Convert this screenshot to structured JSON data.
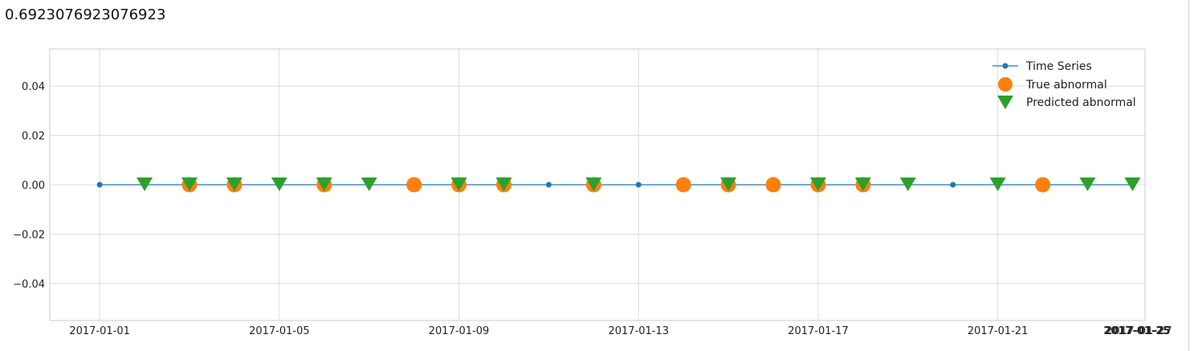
{
  "output_text": "0.6923076923076923",
  "chart_data": {
    "type": "scatter",
    "title": "",
    "xlabel": "",
    "ylabel": "",
    "x_ticks": [
      "2017-01-01",
      "2017-01-05",
      "2017-01-09",
      "2017-01-13",
      "2017-01-17",
      "2017-01-21"
    ],
    "y_ticks": [
      "0.04",
      "0.02",
      "0.00",
      "−0.02",
      "−0.04"
    ],
    "ylim": [
      -0.055,
      0.055
    ],
    "xlim": [
      "2016-12-30T21:20",
      "2017-01-24T06:40"
    ],
    "grid": true,
    "legend_position": "top-right",
    "legend": [
      "Time Series",
      "True abnormal",
      "Predicted abnormal"
    ],
    "series": [
      {
        "name": "Time Series",
        "style": "line-dot",
        "color": "#1f77b4",
        "x": [
          "2017-01-01",
          "2017-01-02",
          "2017-01-03",
          "2017-01-04",
          "2017-01-05",
          "2017-01-06",
          "2017-01-07",
          "2017-01-08",
          "2017-01-09",
          "2017-01-10",
          "2017-01-11",
          "2017-01-12",
          "2017-01-13",
          "2017-01-14",
          "2017-01-15",
          "2017-01-16",
          "2017-01-17",
          "2017-01-18",
          "2017-01-19",
          "2017-01-20",
          "2017-01-21",
          "2017-01-22",
          "2017-01-23",
          "2017-01-24"
        ],
        "y": [
          0,
          0,
          0,
          0,
          0,
          0,
          0,
          0,
          0,
          0,
          0,
          0,
          0,
          0,
          0,
          0,
          0,
          0,
          0,
          0,
          0,
          0,
          0,
          0
        ]
      },
      {
        "name": "True abnormal",
        "style": "circle",
        "color": "#ff7f0e",
        "x": [
          "2017-01-03",
          "2017-01-04",
          "2017-01-06",
          "2017-01-08",
          "2017-01-09",
          "2017-01-10",
          "2017-01-12",
          "2017-01-14",
          "2017-01-15",
          "2017-01-16",
          "2017-01-17",
          "2017-01-18",
          "2017-01-22"
        ],
        "y": [
          0,
          0,
          0,
          0,
          0,
          0,
          0,
          0,
          0,
          0,
          0,
          0,
          0
        ]
      },
      {
        "name": "Predicted abnormal",
        "style": "triangle-down",
        "color": "#2ca02c",
        "x": [
          "2017-01-02",
          "2017-01-03",
          "2017-01-04",
          "2017-01-05",
          "2017-01-06",
          "2017-01-07",
          "2017-01-09",
          "2017-01-10",
          "2017-01-12",
          "2017-01-15",
          "2017-01-17",
          "2017-01-18",
          "2017-01-19",
          "2017-01-21",
          "2017-01-23",
          "2017-01-24"
        ],
        "y": [
          0,
          0,
          0,
          0,
          0,
          0,
          0,
          0,
          0,
          0,
          0,
          0,
          0,
          0,
          0,
          0
        ]
      }
    ]
  }
}
